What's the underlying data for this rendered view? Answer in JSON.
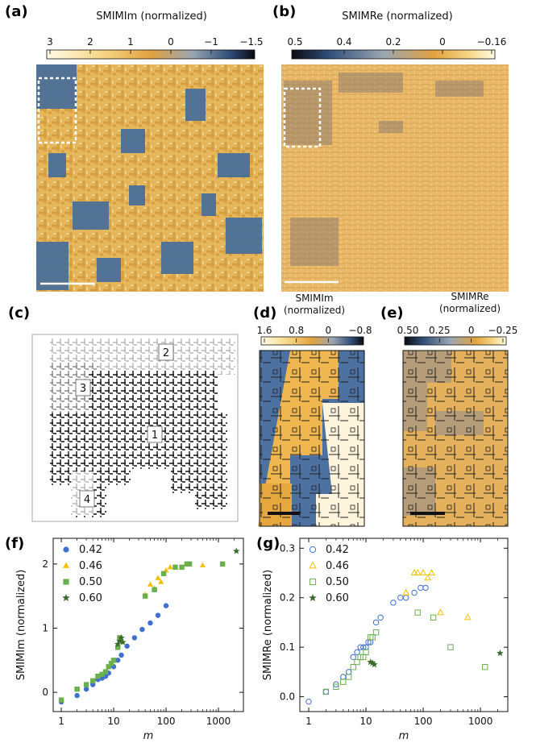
{
  "panels": {
    "a": {
      "label": "(a)",
      "title": "SMIMIm (normalized)",
      "cbar_ticks": [
        "3",
        "2",
        "1",
        "0",
        "−1",
        "−1.5"
      ]
    },
    "b": {
      "label": "(b)",
      "title": "SMIMRe (normalized)",
      "cbar_ticks": [
        "0.5",
        "0.4",
        "0.2",
        "0",
        "−0.16"
      ]
    },
    "c": {
      "label": "(c)",
      "regions": [
        "1",
        "2",
        "3",
        "4"
      ]
    },
    "d": {
      "label": "(d)",
      "title_line1": "SMIMIm",
      "title_line2": "(normalized)",
      "cbar_ticks": [
        "1.6",
        "0.8",
        "0",
        "−0.8"
      ]
    },
    "e": {
      "label": "(e)",
      "title_line1": "SMIMRe",
      "title_line2": "(normalized)",
      "cbar_ticks": [
        "0.50",
        "0.25",
        "0",
        "−0.25"
      ]
    },
    "f": {
      "label": "(f)"
    },
    "g": {
      "label": "(g)"
    }
  },
  "colors": {
    "s042": "#3f6fd0",
    "s046": "#f5c000",
    "s050": "#6ab04c",
    "s060": "#3a6b2a",
    "map_bright": "#f7c65a",
    "map_dark": "#3c5f8a"
  },
  "chart_data": [
    {
      "type": "scatter",
      "panel": "f",
      "xlabel": "m",
      "ylabel": "SMIMIm (normalized)",
      "xscale": "log",
      "xlim": [
        0.7,
        3000
      ],
      "ylim": [
        -0.3,
        2.4
      ],
      "xticks": [
        "1",
        "10",
        "100",
        "1000"
      ],
      "yticks": [
        "0",
        "1",
        "2"
      ],
      "legend_position": "upper-left",
      "series": [
        {
          "name": "0.42",
          "marker": "circle",
          "filled": true,
          "x": [
            1,
            2,
            3,
            4,
            5,
            6,
            7,
            8,
            10,
            12,
            14,
            18,
            25,
            35,
            50,
            70,
            100
          ],
          "y": [
            -0.15,
            -0.05,
            0.05,
            0.12,
            0.2,
            0.22,
            0.25,
            0.3,
            0.4,
            0.5,
            0.58,
            0.72,
            0.85,
            0.98,
            1.08,
            1.2,
            1.35
          ]
        },
        {
          "name": "0.46",
          "marker": "triangle",
          "filled": true,
          "x": [
            40,
            50,
            60,
            70,
            80,
            100,
            120,
            500
          ],
          "y": [
            1.52,
            1.68,
            1.62,
            1.78,
            1.72,
            1.9,
            1.95,
            1.98
          ]
        },
        {
          "name": "0.50",
          "marker": "square",
          "filled": true,
          "x": [
            1,
            2,
            3,
            4,
            5,
            6,
            7,
            8,
            9,
            10,
            12,
            13,
            40,
            60,
            90,
            150,
            200,
            250,
            280,
            1200
          ],
          "y": [
            -0.12,
            0.05,
            0.12,
            0.18,
            0.25,
            0.28,
            0.32,
            0.4,
            0.45,
            0.5,
            0.7,
            0.85,
            1.5,
            1.6,
            1.85,
            1.95,
            1.95,
            2.0,
            2.0,
            2.0
          ]
        },
        {
          "name": "0.60",
          "marker": "star",
          "filled": true,
          "x": [
            12,
            13,
            14,
            15,
            2200
          ],
          "y": [
            0.75,
            0.8,
            0.85,
            0.78,
            2.2
          ]
        }
      ]
    },
    {
      "type": "scatter",
      "panel": "g",
      "xlabel": "m",
      "ylabel": "SMIMRe (normalized)",
      "xscale": "log",
      "xlim": [
        0.7,
        3000
      ],
      "ylim": [
        -0.03,
        0.32
      ],
      "xticks": [
        "1",
        "10",
        "100",
        "1000"
      ],
      "yticks": [
        "0.0",
        "0.1",
        "0.2",
        "0.3"
      ],
      "legend_position": "upper-left",
      "series": [
        {
          "name": "0.42",
          "marker": "circle",
          "filled": false,
          "x": [
            1,
            2,
            3,
            4,
            5,
            6,
            7,
            8,
            9,
            10,
            11,
            12,
            15,
            18,
            30,
            40,
            50,
            70,
            90,
            110
          ],
          "y": [
            -0.01,
            0.01,
            0.025,
            0.04,
            0.05,
            0.08,
            0.09,
            0.1,
            0.1,
            0.1,
            0.11,
            0.11,
            0.15,
            0.16,
            0.19,
            0.2,
            0.2,
            0.21,
            0.22,
            0.22
          ]
        },
        {
          "name": "0.46",
          "marker": "triangle",
          "filled": false,
          "x": [
            50,
            70,
            80,
            100,
            120,
            140,
            200,
            600
          ],
          "y": [
            0.21,
            0.25,
            0.25,
            0.25,
            0.24,
            0.25,
            0.17,
            0.16
          ]
        },
        {
          "name": "0.50",
          "marker": "square",
          "filled": false,
          "x": [
            2,
            3,
            4,
            5,
            6,
            7,
            8,
            9,
            10,
            12,
            13,
            15,
            80,
            150,
            300,
            1200
          ],
          "y": [
            0.01,
            0.02,
            0.03,
            0.04,
            0.06,
            0.07,
            0.08,
            0.08,
            0.09,
            0.12,
            0.12,
            0.13,
            0.17,
            0.16,
            0.1,
            0.06
          ]
        },
        {
          "name": "0.60",
          "marker": "star",
          "filled": true,
          "x": [
            12,
            13,
            14,
            2200
          ],
          "y": [
            0.07,
            0.068,
            0.065,
            0.088
          ]
        }
      ]
    }
  ]
}
